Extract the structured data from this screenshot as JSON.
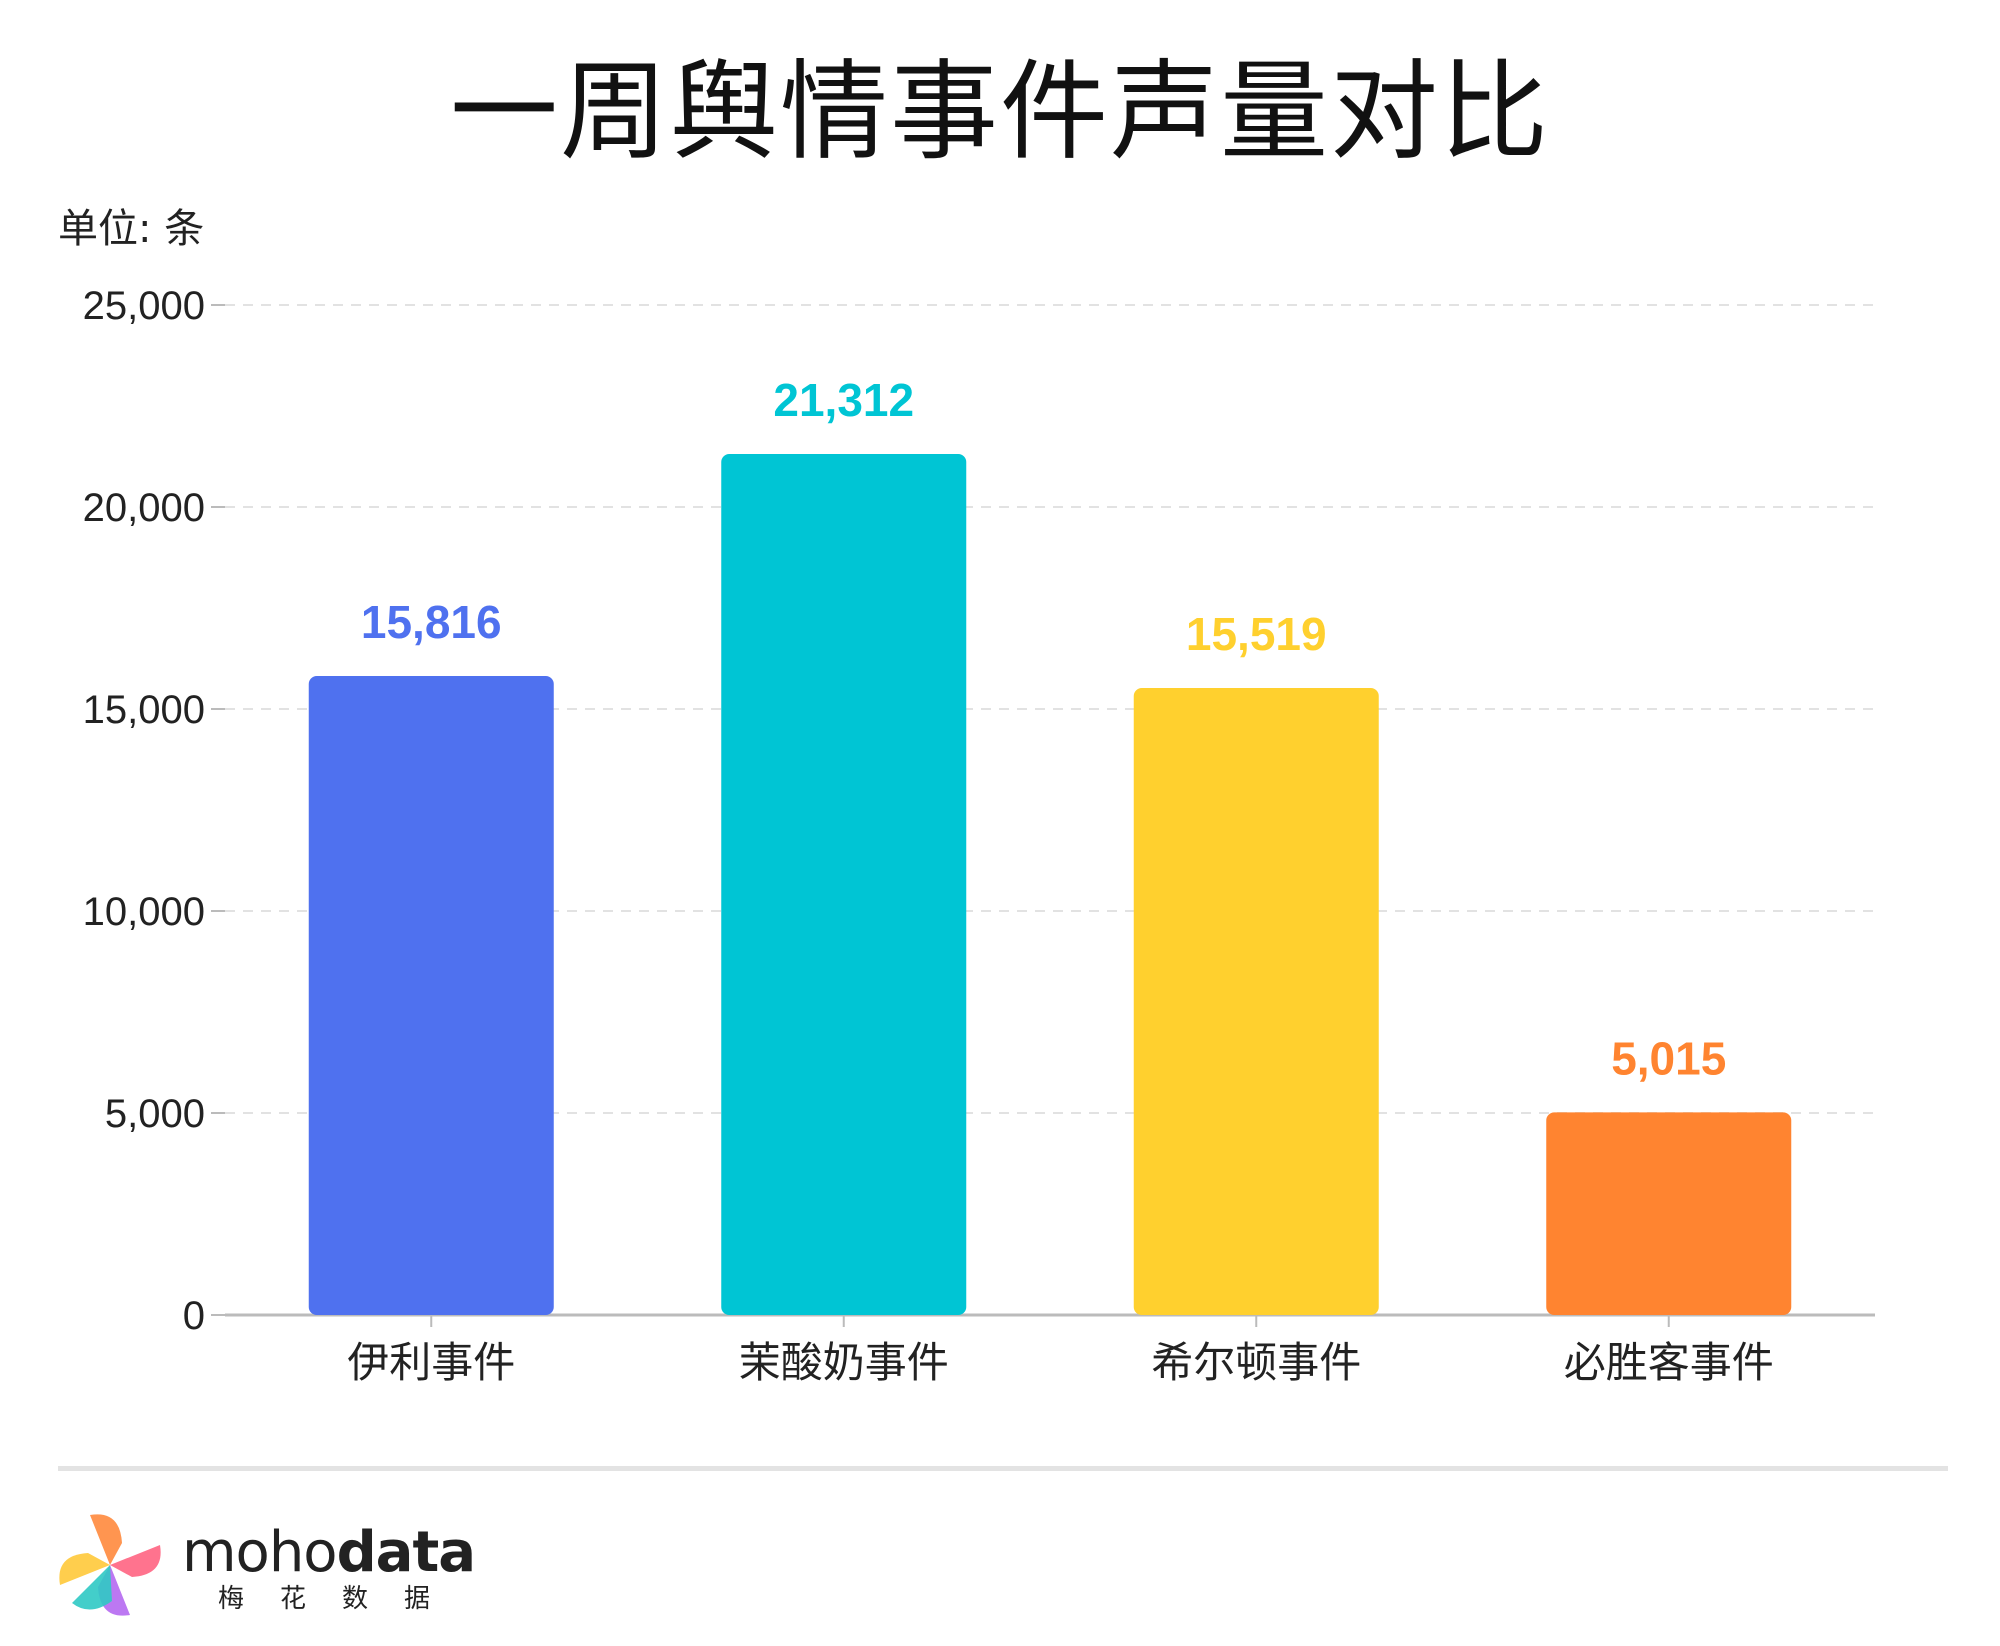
{
  "title": "一周舆情事件声量对比",
  "unit_label": "单位: 条",
  "chart_data": {
    "type": "bar",
    "title": "一周舆情事件声量对比",
    "ylabel": "单位: 条",
    "xlabel": "",
    "categories": [
      "伊利事件",
      "茉酸奶事件",
      "希尔顿事件",
      "必胜客事件"
    ],
    "values": [
      15816,
      21312,
      15519,
      5015
    ],
    "value_labels": [
      "15,816",
      "21,312",
      "15,519",
      "5,015"
    ],
    "colors": [
      "#4f71ef",
      "#00c5d4",
      "#ffd02e",
      "#ff8430"
    ],
    "ylim": [
      0,
      25000
    ],
    "yticks": [
      0,
      5000,
      10000,
      15000,
      20000,
      25000
    ],
    "ytick_labels": [
      "0",
      "5,000",
      "10,000",
      "15,000",
      "20,000",
      "25,000"
    ],
    "grid": true,
    "legend": "none"
  },
  "brand": {
    "name_light": "moho",
    "name_bold": "data",
    "subtitle": "梅花数据"
  }
}
